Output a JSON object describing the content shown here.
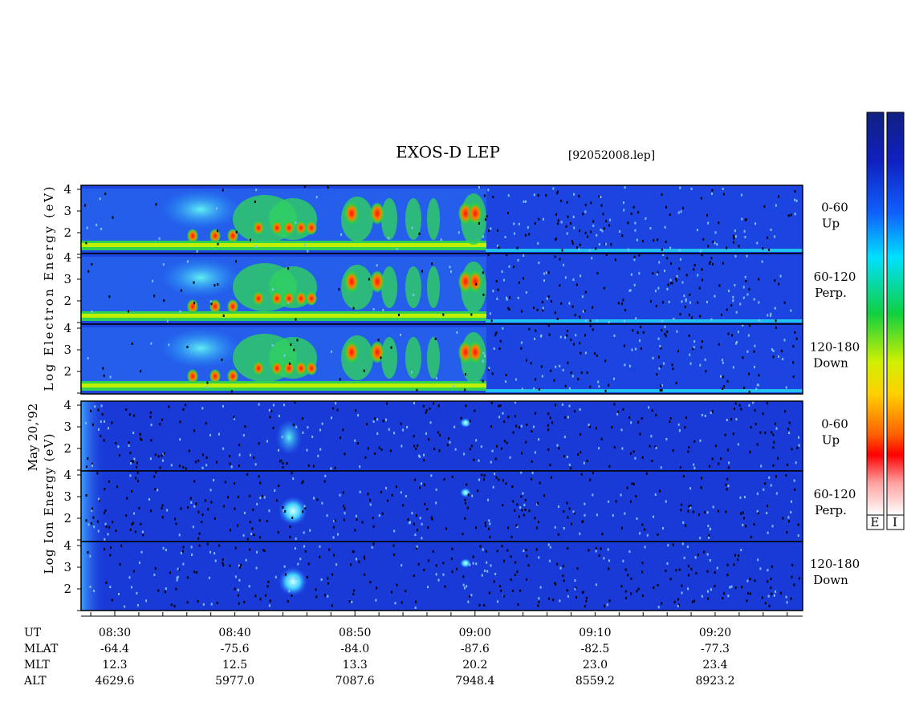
{
  "title": "EXOS-D LEP",
  "file": "[92052008.lep]",
  "date_label": "May 20,'92",
  "electron_axis_label": "Log  Electron  Energy (eV)",
  "ion_axis_label": "Log  Ion  Energy (eV)",
  "panels": [
    {
      "ticks": [
        "4",
        "3",
        "2"
      ],
      "channel": "0-60",
      "direction": "Up"
    },
    {
      "ticks": [
        "4",
        "3",
        "2"
      ],
      "channel": "60-120",
      "direction": "Perp."
    },
    {
      "ticks": [
        "4",
        "3",
        "2"
      ],
      "channel": "120-180",
      "direction": "Down"
    },
    {
      "ticks": [
        "4",
        "3",
        "2"
      ],
      "channel": "0-60",
      "direction": "Up"
    },
    {
      "ticks": [
        "4",
        "3",
        "2"
      ],
      "channel": "60-120",
      "direction": "Perp."
    },
    {
      "ticks": [
        "4",
        "3",
        "2"
      ],
      "channel": "120-180",
      "direction": "Down"
    }
  ],
  "colorbar_labels": [
    "E",
    "I"
  ],
  "ephemeris": [
    {
      "name": "UT",
      "values": [
        "08:30",
        "08:40",
        "08:50",
        "09:00",
        "09:10",
        "09:20"
      ]
    },
    {
      "name": "MLAT",
      "values": [
        "-64.4",
        "-75.6",
        "-84.0",
        "-87.6",
        "-82.5",
        "-77.3"
      ]
    },
    {
      "name": "MLT",
      "values": [
        "12.3",
        "12.5",
        "13.3",
        "20.2",
        "23.0",
        "23.4"
      ]
    },
    {
      "name": "ALT",
      "values": [
        "4629.6",
        "5977.0",
        "7087.6",
        "7948.4",
        "8559.2",
        "8923.2"
      ]
    }
  ]
}
